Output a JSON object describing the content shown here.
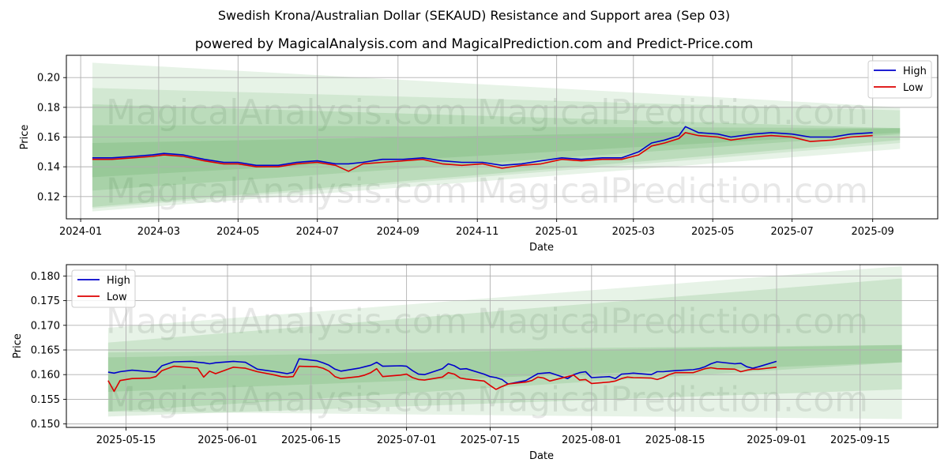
{
  "title": "Swedish Krona/Australian Dollar (SEKAUD) Resistance and Support area (Sep 03)",
  "subtitle": "powered by MagicalAnalysis.com and MagicalPrediction.com and Predict-Price.com",
  "watermarks": [
    "MagicalAnalysis.com",
    "MagicalPrediction.com"
  ],
  "colors": {
    "high": "#0000cc",
    "low": "#dd0000",
    "band": "#3a9a3a",
    "grid": "#b0b0b0"
  },
  "chart_data": [
    {
      "type": "line",
      "name": "full-range",
      "xlabel": "Date",
      "ylabel": "Price",
      "x_range": [
        "2023-12-21",
        "2025-10-21"
      ],
      "ylim": [
        0.105,
        0.215
      ],
      "x_ticks": [
        "2024-01",
        "2024-03",
        "2024-05",
        "2024-07",
        "2024-09",
        "2024-11",
        "2025-01",
        "2025-03",
        "2025-05",
        "2025-07",
        "2025-09"
      ],
      "x_tick_dates": [
        "2024-01-01",
        "2024-03-01",
        "2024-05-01",
        "2024-07-01",
        "2024-09-01",
        "2024-11-01",
        "2025-01-01",
        "2025-03-01",
        "2025-05-01",
        "2025-07-01",
        "2025-09-01"
      ],
      "y_ticks": [
        "0.12",
        "0.14",
        "0.16",
        "0.18",
        "0.20"
      ],
      "y_tick_values": [
        0.12,
        0.14,
        0.16,
        0.18,
        0.2
      ],
      "legend": {
        "position": "top-right",
        "entries": [
          "High",
          "Low"
        ]
      },
      "bands": [
        {
          "start": "2024-01-10",
          "end": "2025-09-22",
          "upper": [
            0.21,
            0.18
          ],
          "lower": [
            0.11,
            0.152
          ],
          "alpha": 0.12
        },
        {
          "start": "2024-01-10",
          "end": "2025-09-22",
          "upper": [
            0.193,
            0.178
          ],
          "lower": [
            0.112,
            0.156
          ],
          "alpha": 0.12
        },
        {
          "start": "2024-01-10",
          "end": "2025-09-22",
          "upper": [
            0.182,
            0.166
          ],
          "lower": [
            0.113,
            0.158
          ],
          "alpha": 0.15
        },
        {
          "start": "2024-01-10",
          "end": "2025-09-22",
          "upper": [
            0.168,
            0.166
          ],
          "lower": [
            0.124,
            0.162
          ],
          "alpha": 0.15
        },
        {
          "start": "2024-01-10",
          "end": "2025-09-22",
          "upper": [
            0.156,
            0.166
          ],
          "lower": [
            0.133,
            0.163
          ],
          "alpha": 0.15
        }
      ],
      "series": [
        {
          "name": "High",
          "x": [
            "2024-01-10",
            "2024-01-25",
            "2024-02-10",
            "2024-02-25",
            "2024-03-05",
            "2024-03-20",
            "2024-04-05",
            "2024-04-20",
            "2024-05-01",
            "2024-05-15",
            "2024-06-01",
            "2024-06-15",
            "2024-07-01",
            "2024-07-15",
            "2024-07-25",
            "2024-08-05",
            "2024-08-20",
            "2024-09-05",
            "2024-09-20",
            "2024-10-05",
            "2024-10-20",
            "2024-11-05",
            "2024-11-20",
            "2024-12-05",
            "2024-12-20",
            "2025-01-05",
            "2025-01-20",
            "2025-02-05",
            "2025-02-20",
            "2025-03-05",
            "2025-03-15",
            "2025-03-25",
            "2025-04-05",
            "2025-04-10",
            "2025-04-20",
            "2025-05-05",
            "2025-05-15",
            "2025-06-01",
            "2025-06-15",
            "2025-07-01",
            "2025-07-15",
            "2025-08-01",
            "2025-08-15",
            "2025-09-01"
          ],
          "values": [
            0.146,
            0.146,
            0.147,
            0.148,
            0.149,
            0.148,
            0.145,
            0.143,
            0.143,
            0.141,
            0.141,
            0.143,
            0.144,
            0.142,
            0.142,
            0.143,
            0.145,
            0.145,
            0.146,
            0.144,
            0.143,
            0.143,
            0.141,
            0.142,
            0.144,
            0.146,
            0.145,
            0.146,
            0.146,
            0.15,
            0.156,
            0.158,
            0.161,
            0.167,
            0.163,
            0.162,
            0.16,
            0.162,
            0.163,
            0.162,
            0.16,
            0.16,
            0.162,
            0.163
          ]
        },
        {
          "name": "Low",
          "x": [
            "2024-01-10",
            "2024-01-25",
            "2024-02-10",
            "2024-02-25",
            "2024-03-05",
            "2024-03-20",
            "2024-04-05",
            "2024-04-20",
            "2024-05-01",
            "2024-05-15",
            "2024-06-01",
            "2024-06-15",
            "2024-07-01",
            "2024-07-15",
            "2024-07-25",
            "2024-08-05",
            "2024-08-20",
            "2024-09-05",
            "2024-09-20",
            "2024-10-05",
            "2024-10-20",
            "2024-11-05",
            "2024-11-20",
            "2024-12-05",
            "2024-12-20",
            "2025-01-05",
            "2025-01-20",
            "2025-02-05",
            "2025-02-20",
            "2025-03-05",
            "2025-03-15",
            "2025-03-25",
            "2025-04-05",
            "2025-04-10",
            "2025-04-20",
            "2025-05-05",
            "2025-05-15",
            "2025-06-01",
            "2025-06-15",
            "2025-07-01",
            "2025-07-15",
            "2025-08-01",
            "2025-08-15",
            "2025-09-01"
          ],
          "values": [
            0.145,
            0.145,
            0.146,
            0.147,
            0.148,
            0.147,
            0.144,
            0.142,
            0.142,
            0.14,
            0.14,
            0.142,
            0.143,
            0.141,
            0.137,
            0.142,
            0.143,
            0.144,
            0.145,
            0.142,
            0.141,
            0.142,
            0.139,
            0.141,
            0.142,
            0.145,
            0.144,
            0.145,
            0.145,
            0.148,
            0.154,
            0.156,
            0.159,
            0.163,
            0.161,
            0.16,
            0.158,
            0.16,
            0.161,
            0.16,
            0.157,
            0.158,
            0.16,
            0.161
          ]
        }
      ]
    },
    {
      "type": "line",
      "name": "zoomed",
      "xlabel": "Date",
      "ylabel": "Price",
      "x_range": [
        "2025-05-05",
        "2025-09-28"
      ],
      "ylim": [
        0.1493,
        0.1823
      ],
      "x_ticks": [
        "2025-05-15",
        "2025-06-01",
        "2025-06-15",
        "2025-07-01",
        "2025-07-15",
        "2025-08-01",
        "2025-08-15",
        "2025-09-01",
        "2025-09-15"
      ],
      "x_tick_dates": [
        "2025-05-15",
        "2025-06-01",
        "2025-06-15",
        "2025-07-01",
        "2025-07-15",
        "2025-08-01",
        "2025-08-15",
        "2025-09-01",
        "2025-09-15"
      ],
      "y_ticks": [
        "0.150",
        "0.155",
        "0.160",
        "0.165",
        "0.170",
        "0.175",
        "0.180"
      ],
      "y_tick_values": [
        0.15,
        0.155,
        0.16,
        0.165,
        0.17,
        0.175,
        0.18
      ],
      "legend": {
        "position": "top-left",
        "entries": [
          "High",
          "Low"
        ]
      },
      "bands": [
        {
          "start": "2025-05-12",
          "end": "2025-09-22",
          "upper": [
            0.1695,
            0.182
          ],
          "lower": [
            0.1525,
            0.151
          ],
          "alpha": 0.12
        },
        {
          "start": "2025-05-12",
          "end": "2025-09-22",
          "upper": [
            0.1665,
            0.1795
          ],
          "lower": [
            0.1515,
            0.157
          ],
          "alpha": 0.15
        },
        {
          "start": "2025-05-12",
          "end": "2025-09-22",
          "upper": [
            0.1645,
            0.166
          ],
          "lower": [
            0.1525,
            0.1625
          ],
          "alpha": 0.15
        },
        {
          "start": "2025-05-12",
          "end": "2025-09-22",
          "upper": [
            0.1635,
            0.166
          ],
          "lower": [
            0.1565,
            0.1625
          ],
          "alpha": 0.15
        }
      ],
      "series": [
        {
          "name": "High",
          "x": [
            "2025-05-12",
            "2025-05-13",
            "2025-05-14",
            "2025-05-16",
            "2025-05-19",
            "2025-05-20",
            "2025-05-21",
            "2025-05-23",
            "2025-05-26",
            "2025-05-27",
            "2025-05-28",
            "2025-05-29",
            "2025-05-30",
            "2025-06-02",
            "2025-06-03",
            "2025-06-04",
            "2025-06-06",
            "2025-06-09",
            "2025-06-10",
            "2025-06-11",
            "2025-06-12",
            "2025-06-13",
            "2025-06-16",
            "2025-06-17",
            "2025-06-18",
            "2025-06-19",
            "2025-06-20",
            "2025-06-23",
            "2025-06-24",
            "2025-06-25",
            "2025-06-26",
            "2025-06-27",
            "2025-06-30",
            "2025-07-01",
            "2025-07-02",
            "2025-07-03",
            "2025-07-04",
            "2025-07-07",
            "2025-07-08",
            "2025-07-09",
            "2025-07-10",
            "2025-07-11",
            "2025-07-14",
            "2025-07-15",
            "2025-07-16",
            "2025-07-17",
            "2025-07-18",
            "2025-07-21",
            "2025-07-22",
            "2025-07-23",
            "2025-07-24",
            "2025-07-25",
            "2025-07-28",
            "2025-07-29",
            "2025-07-30",
            "2025-07-31",
            "2025-08-01",
            "2025-08-04",
            "2025-08-05",
            "2025-08-06",
            "2025-08-07",
            "2025-08-08",
            "2025-08-11",
            "2025-08-12",
            "2025-08-13",
            "2025-08-14",
            "2025-08-15",
            "2025-08-18",
            "2025-08-19",
            "2025-08-20",
            "2025-08-21",
            "2025-08-22",
            "2025-08-25",
            "2025-08-26",
            "2025-08-27",
            "2025-08-28",
            "2025-08-29",
            "2025-09-01"
          ],
          "values": [
            0.1605,
            0.1603,
            0.1606,
            0.1609,
            0.1606,
            0.1605,
            0.1618,
            0.1626,
            0.1627,
            0.1625,
            0.1624,
            0.1622,
            0.1624,
            0.1627,
            0.1626,
            0.1625,
            0.1611,
            0.1606,
            0.1604,
            0.1602,
            0.1605,
            0.1632,
            0.1628,
            0.1624,
            0.1619,
            0.1611,
            0.1607,
            0.1613,
            0.1616,
            0.1619,
            0.1625,
            0.1617,
            0.1618,
            0.1617,
            0.1608,
            0.1601,
            0.16,
            0.1612,
            0.1622,
            0.1618,
            0.1611,
            0.1612,
            0.1601,
            0.1596,
            0.1594,
            0.159,
            0.1581,
            0.1588,
            0.1595,
            0.1602,
            0.1603,
            0.1604,
            0.1592,
            0.16,
            0.1604,
            0.1606,
            0.1594,
            0.1596,
            0.1592,
            0.1601,
            0.1602,
            0.1603,
            0.16,
            0.1606,
            0.1606,
            0.1607,
            0.1608,
            0.161,
            0.1612,
            0.1616,
            0.1622,
            0.1626,
            0.1622,
            0.1623,
            0.1616,
            0.1613,
            0.1616,
            0.1627
          ]
        },
        {
          "name": "Low",
          "x": [
            "2025-05-12",
            "2025-05-13",
            "2025-05-14",
            "2025-05-16",
            "2025-05-19",
            "2025-05-20",
            "2025-05-21",
            "2025-05-23",
            "2025-05-26",
            "2025-05-27",
            "2025-05-28",
            "2025-05-29",
            "2025-05-30",
            "2025-06-02",
            "2025-06-03",
            "2025-06-04",
            "2025-06-06",
            "2025-06-09",
            "2025-06-10",
            "2025-06-11",
            "2025-06-12",
            "2025-06-13",
            "2025-06-16",
            "2025-06-17",
            "2025-06-18",
            "2025-06-19",
            "2025-06-20",
            "2025-06-23",
            "2025-06-24",
            "2025-06-25",
            "2025-06-26",
            "2025-06-27",
            "2025-06-30",
            "2025-07-01",
            "2025-07-02",
            "2025-07-03",
            "2025-07-04",
            "2025-07-07",
            "2025-07-08",
            "2025-07-09",
            "2025-07-10",
            "2025-07-11",
            "2025-07-14",
            "2025-07-15",
            "2025-07-16",
            "2025-07-17",
            "2025-07-18",
            "2025-07-21",
            "2025-07-22",
            "2025-07-23",
            "2025-07-24",
            "2025-07-25",
            "2025-07-28",
            "2025-07-29",
            "2025-07-30",
            "2025-07-31",
            "2025-08-01",
            "2025-08-04",
            "2025-08-05",
            "2025-08-06",
            "2025-08-07",
            "2025-08-08",
            "2025-08-11",
            "2025-08-12",
            "2025-08-13",
            "2025-08-14",
            "2025-08-15",
            "2025-08-18",
            "2025-08-19",
            "2025-08-20",
            "2025-08-21",
            "2025-08-22",
            "2025-08-25",
            "2025-08-26",
            "2025-08-27",
            "2025-08-28",
            "2025-08-29",
            "2025-09-01"
          ],
          "values": [
            0.1588,
            0.1566,
            0.1588,
            0.1592,
            0.1593,
            0.1596,
            0.1608,
            0.1617,
            0.1614,
            0.1613,
            0.1595,
            0.1607,
            0.1602,
            0.1615,
            0.1614,
            0.1613,
            0.1606,
            0.1599,
            0.1596,
            0.1595,
            0.1596,
            0.1617,
            0.1616,
            0.1613,
            0.1607,
            0.1596,
            0.1592,
            0.1596,
            0.1599,
            0.1604,
            0.1612,
            0.1596,
            0.1599,
            0.1601,
            0.1594,
            0.159,
            0.1589,
            0.1595,
            0.1604,
            0.1601,
            0.1593,
            0.1591,
            0.1587,
            0.1578,
            0.157,
            0.1576,
            0.1581,
            0.1585,
            0.1588,
            0.1595,
            0.1593,
            0.1587,
            0.1596,
            0.1599,
            0.1589,
            0.159,
            0.1582,
            0.1585,
            0.1587,
            0.1592,
            0.1595,
            0.1594,
            0.1593,
            0.159,
            0.1594,
            0.16,
            0.1604,
            0.1604,
            0.1608,
            0.1612,
            0.1614,
            0.1612,
            0.1611,
            0.1606,
            0.1609,
            0.1611,
            0.1611,
            0.1615
          ]
        }
      ]
    }
  ]
}
